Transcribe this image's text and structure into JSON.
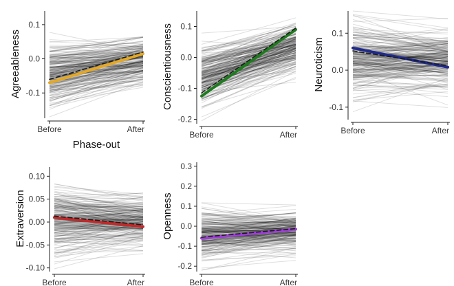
{
  "figure": {
    "shared_xlabel": "Phase-out",
    "n_individual_lines": 220
  },
  "chart_data": [
    {
      "type": "line",
      "ylabel": "Agreeableness",
      "categories": [
        "Before",
        "After"
      ],
      "ylim": [
        -0.17,
        0.14
      ],
      "yticks": [
        -0.1,
        0.0,
        0.1
      ],
      "ytick_labels": [
        "-0.1",
        "0.0",
        "0.1"
      ],
      "series": [
        {
          "values": [
            -0.07,
            0.015
          ],
          "style": "solid",
          "color": "#E5A825"
        },
        {
          "values": [
            -0.06,
            0.02
          ],
          "style": "dashed",
          "color": "#E5A825"
        }
      ],
      "background_lines": {
        "mean_before": -0.045,
        "mean_after": -0.005,
        "sd_before": 0.045,
        "sd_after": 0.035,
        "min": -0.17,
        "max": 0.14
      }
    },
    {
      "type": "line",
      "ylabel": "Conscientiousness",
      "categories": [
        "Before",
        "After"
      ],
      "ylim": [
        -0.21,
        0.15
      ],
      "yticks": [
        -0.2,
        -0.1,
        0.0,
        0.1
      ],
      "ytick_labels": [
        "-0.2",
        "-0.1",
        "0.0",
        "0.1"
      ],
      "series": [
        {
          "values": [
            -0.125,
            0.09
          ],
          "style": "solid",
          "color": "#1E7B1E"
        },
        {
          "values": [
            -0.115,
            0.095
          ],
          "style": "dashed",
          "color": "#1E7B1E"
        }
      ],
      "background_lines": {
        "mean_before": -0.06,
        "mean_after": 0.03,
        "sd_before": 0.05,
        "sd_after": 0.04,
        "min": -0.21,
        "max": 0.15
      }
    },
    {
      "type": "line",
      "ylabel": "Neuroticism",
      "categories": [
        "Before",
        "After"
      ],
      "ylim": [
        -0.13,
        0.16
      ],
      "yticks": [
        -0.1,
        0.0,
        0.1
      ],
      "ytick_labels": [
        "-0.1",
        "0.0",
        "0.1"
      ],
      "series": [
        {
          "values": [
            0.06,
            0.008
          ],
          "style": "solid",
          "color": "#1F2A8C"
        },
        {
          "values": [
            0.052,
            0.012
          ],
          "style": "dashed",
          "color": "#1F2A8C"
        }
      ],
      "background_lines": {
        "mean_before": 0.03,
        "mean_after": 0.03,
        "sd_before": 0.05,
        "sd_after": 0.045,
        "min": -0.13,
        "max": 0.16
      }
    },
    {
      "type": "line",
      "ylabel": "Extraversion",
      "categories": [
        "Before",
        "After"
      ],
      "ylim": [
        -0.105,
        0.12
      ],
      "yticks": [
        -0.1,
        -0.05,
        0.0,
        0.05,
        0.1
      ],
      "ytick_labels": [
        "-0.10",
        "-0.05",
        "0.00",
        "0.05",
        "0.10"
      ],
      "series": [
        {
          "values": [
            0.01,
            -0.01
          ],
          "style": "solid",
          "color": "#C42828"
        },
        {
          "values": [
            0.013,
            -0.006
          ],
          "style": "dashed",
          "color": "#C42828"
        }
      ],
      "background_lines": {
        "mean_before": 0.0,
        "mean_after": 0.0,
        "sd_before": 0.035,
        "sd_after": 0.03,
        "min": -0.105,
        "max": 0.12
      }
    },
    {
      "type": "line",
      "ylabel": "Openness",
      "categories": [
        "Before",
        "After"
      ],
      "ylim": [
        -0.22,
        0.32
      ],
      "yticks": [
        -0.2,
        -0.1,
        0.0,
        0.1,
        0.2,
        0.3
      ],
      "ytick_labels": [
        "-0.2",
        "-0.1",
        "0.0",
        "0.1",
        "0.2",
        "0.3"
      ],
      "series": [
        {
          "values": [
            -0.06,
            -0.015
          ],
          "style": "solid",
          "color": "#A23BE0"
        },
        {
          "values": [
            -0.055,
            -0.012
          ],
          "style": "dashed",
          "color": "#A23BE0"
        }
      ],
      "background_lines": {
        "mean_before": -0.04,
        "mean_after": -0.02,
        "sd_before": 0.06,
        "sd_after": 0.055,
        "min": -0.22,
        "max": 0.32
      }
    }
  ]
}
